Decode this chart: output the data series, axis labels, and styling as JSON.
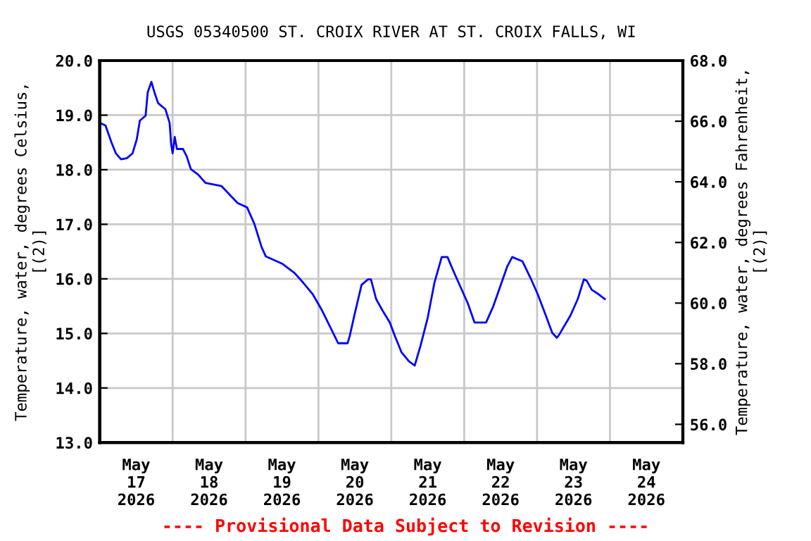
{
  "chart_data": {
    "type": "line",
    "title": "USGS 05340500 ST. CROIX RIVER AT ST. CROIX FALLS, WI",
    "ylabel": "Temperature, water, degrees Celsius,\n[(2)]",
    "y2label": "Temperature, water, degrees Fahrenheit,\n[(2)]",
    "annotations": [
      "---- Provisional Data Subject to Revision ----"
    ],
    "series": [
      {
        "color": "#0000ff",
        "x": [
          "2026-05-17T00:00",
          "2026-05-17T01:54",
          "2026-05-17T03:48",
          "2026-05-17T05:18",
          "2026-05-17T07:00",
          "2026-05-17T08:54",
          "2026-05-17T10:48",
          "2026-05-17T12:12",
          "2026-05-17T13:12",
          "2026-05-17T15:06",
          "2026-05-17T15:48",
          "2026-05-17T17:00",
          "2026-05-17T18:00",
          "2026-05-17T19:12",
          "2026-05-17T21:36",
          "2026-05-17T23:00",
          "2026-05-17T23:30",
          "2026-05-18T00:00",
          "2026-05-18T00:42",
          "2026-05-18T01:24",
          "2026-05-18T03:24",
          "2026-05-18T04:36",
          "2026-05-18T06:00",
          "2026-05-18T08:24",
          "2026-05-18T10:48",
          "2026-05-18T16:06",
          "2026-05-18T21:24",
          "2026-05-19T00:30",
          "2026-05-19T02:54",
          "2026-05-19T05:18",
          "2026-05-19T06:42",
          "2026-05-19T12:00",
          "2026-05-19T16:06",
          "2026-05-19T19:00",
          "2026-05-19T22:06",
          "2026-05-20T01:12",
          "2026-05-20T04:18",
          "2026-05-20T06:30",
          "2026-05-20T09:36",
          "2026-05-20T10:18",
          "2026-05-20T12:00",
          "2026-05-20T14:12",
          "2026-05-20T16:18",
          "2026-05-20T17:18",
          "2026-05-20T19:00",
          "2026-05-20T21:06",
          "2026-05-20T23:30",
          "2026-05-21T01:12",
          "2026-05-21T03:24",
          "2026-05-21T05:48",
          "2026-05-21T07:42",
          "2026-05-21T09:36",
          "2026-05-21T12:00",
          "2026-05-21T14:12",
          "2026-05-21T16:36",
          "2026-05-21T18:30",
          "2026-05-21T20:24",
          "2026-05-21T22:48",
          "2026-05-22T01:12",
          "2026-05-22T03:24",
          "2026-05-22T07:12",
          "2026-05-22T09:36",
          "2026-05-22T11:48",
          "2026-05-22T14:12",
          "2026-05-22T15:48",
          "2026-05-22T19:12",
          "2026-05-22T21:48",
          "2026-05-23T00:12",
          "2026-05-23T02:36",
          "2026-05-23T05:00",
          "2026-05-23T06:30",
          "2026-05-23T07:12",
          "2026-05-23T11:00",
          "2026-05-23T13:24",
          "2026-05-23T15:24",
          "2026-05-23T16:18",
          "2026-05-23T18:00",
          "2026-05-23T20:12",
          "2026-05-23T22:18"
        ],
        "values": [
          18.86,
          18.81,
          18.51,
          18.3,
          18.19,
          18.21,
          18.3,
          18.56,
          18.9,
          18.99,
          19.42,
          19.61,
          19.42,
          19.22,
          19.11,
          18.86,
          18.47,
          18.3,
          18.6,
          18.38,
          18.38,
          18.25,
          18.01,
          17.91,
          17.76,
          17.7,
          17.39,
          17.31,
          17.01,
          16.58,
          16.41,
          16.28,
          16.11,
          15.93,
          15.72,
          15.42,
          15.07,
          14.82,
          14.82,
          14.95,
          15.37,
          15.89,
          15.99,
          15.99,
          15.63,
          15.42,
          15.2,
          14.95,
          14.65,
          14.49,
          14.41,
          14.77,
          15.29,
          15.93,
          16.4,
          16.4,
          16.15,
          15.85,
          15.55,
          15.2,
          15.2,
          15.5,
          15.85,
          16.23,
          16.4,
          16.32,
          16.02,
          15.72,
          15.37,
          15.01,
          14.92,
          14.97,
          15.33,
          15.63,
          15.99,
          15.97,
          15.8,
          15.72,
          15.63
        ]
      }
    ],
    "xlim": [
      "2026-05-17",
      "2026-05-25"
    ],
    "xticks": [
      {
        "value": "2026-05-17T12:00",
        "label": "May\n17\n2026"
      },
      {
        "value": "2026-05-18",
        "label": null
      },
      {
        "value": "2026-05-18T12:00",
        "label": "May\n18\n2026"
      },
      {
        "value": "2026-05-19",
        "label": null
      },
      {
        "value": "2026-05-19T12:00",
        "label": "May\n19\n2026"
      },
      {
        "value": "2026-05-20",
        "label": null
      },
      {
        "value": "2026-05-20T12:00",
        "label": "May\n20\n2026"
      },
      {
        "value": "2026-05-21",
        "label": null
      },
      {
        "value": "2026-05-21T12:00",
        "label": "May\n21\n2026"
      },
      {
        "value": "2026-05-22",
        "label": null
      },
      {
        "value": "2026-05-22T12:00",
        "label": "May\n22\n2026"
      },
      {
        "value": "2026-05-23",
        "label": null
      },
      {
        "value": "2026-05-23T12:00",
        "label": "May\n23\n2026"
      },
      {
        "value": "2026-05-24",
        "label": null
      },
      {
        "value": "2026-05-24T12:00",
        "label": "May\n24\n2026"
      }
    ],
    "ylim": [
      13,
      20
    ],
    "yticks": [
      {
        "value": 13,
        "label": "13.0"
      },
      {
        "value": 14,
        "label": "14.0"
      },
      {
        "value": 15,
        "label": "15.0"
      },
      {
        "value": 16,
        "label": "16.0"
      },
      {
        "value": 17,
        "label": "17.0"
      },
      {
        "value": 18,
        "label": "18.0"
      },
      {
        "value": 19,
        "label": "19.0"
      },
      {
        "value": 20,
        "label": "20.0"
      }
    ],
    "y2lim": [
      55.4,
      68
    ],
    "y2ticks": [
      {
        "value": 56,
        "label": "56.0"
      },
      {
        "value": 58,
        "label": "58.0"
      },
      {
        "value": 60,
        "label": "60.0"
      },
      {
        "value": 62,
        "label": "62.0"
      },
      {
        "value": 64,
        "label": "64.0"
      },
      {
        "value": 66,
        "label": "66.0"
      },
      {
        "value": 68,
        "label": "68.0"
      }
    ],
    "grid": true,
    "legend": false
  }
}
